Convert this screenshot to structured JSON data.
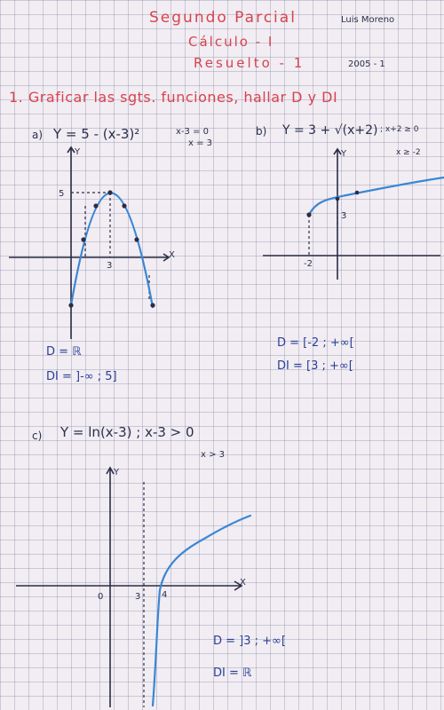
{
  "header": {
    "title": "Segundo Parcial",
    "subject": "Cálculo - I",
    "subtitle": "Resuelto - 1",
    "author": "Luis Moreno",
    "period": "2005 - 1"
  },
  "problem": {
    "number_title": "1. Graficar las sgts. funciones, hallar D y DI"
  },
  "part_a": {
    "label": "a)",
    "equation": "Y = 5 - (x-3)²",
    "note_line1": "x-3 = 0",
    "note_line2": "x = 3",
    "y_axis": "Y",
    "x_axis": "X",
    "tick_y": "5",
    "tick_x": "3",
    "domain": "D = ℝ",
    "range": "DI = ]-∞ ; 5]",
    "curve_color": "#3a86d4"
  },
  "part_b": {
    "label": "b)",
    "equation": "Y = 3 + √(x+2)",
    "note_line1": "; x+2 ≥ 0",
    "note_line2": "x ≥ -2",
    "y_axis": "Y",
    "tick_y": "3",
    "tick_x": "-2",
    "domain": "D = [-2 ; +∞[",
    "range": "DI = [3 ; +∞[",
    "curve_color": "#3a86d4"
  },
  "part_c": {
    "label": "c)",
    "equation": "Y = ln(x-3) ; x-3 > 0",
    "note_line2": "x > 3",
    "y_axis": "Y",
    "x_axis": "X",
    "tick_origin": "0",
    "tick_3": "3",
    "tick_4": "4",
    "domain": "D = ]3 ; +∞[",
    "range": "DI = ℝ",
    "curve_color": "#3a86d4"
  },
  "colors": {
    "title_red": "#d8434e",
    "heading_red": "#d8434e",
    "answer_blue": "#2a3f96",
    "graph_curve": "#3a86d4",
    "grid": "#8c8ca8"
  }
}
